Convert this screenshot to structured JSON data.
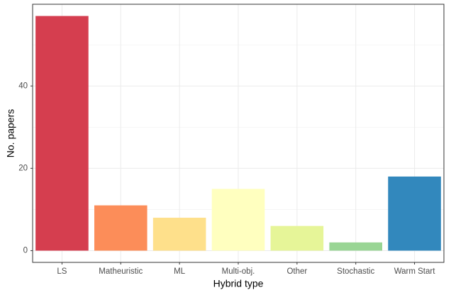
{
  "chart_data": {
    "type": "bar",
    "x_label": "Hybrid type",
    "y_label": "No. papers",
    "categories": [
      "LS",
      "Matheuristic",
      "ML",
      "Multi-obj.",
      "Other",
      "Stochastic",
      "Warm Start"
    ],
    "values": [
      57,
      11,
      8,
      15,
      6,
      2,
      18
    ],
    "colors": [
      "#D53E4F",
      "#FC8D59",
      "#FEE08B",
      "#FFFFBF",
      "#E6F598",
      "#99D594",
      "#3288BD"
    ],
    "ylim": [
      -2.85,
      59.85
    ],
    "yticks": [
      0,
      20,
      40
    ],
    "grid": true
  }
}
